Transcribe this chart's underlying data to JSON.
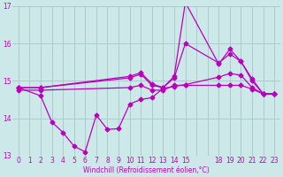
{
  "background_color": "#cce8e8",
  "grid_color": "#aacccc",
  "line_color": "#bb00bb",
  "xlim": [
    -0.5,
    23.5
  ],
  "ylim": [
    13.0,
    17.0
  ],
  "yticks": [
    13,
    14,
    15,
    16,
    17
  ],
  "xtick_labels": [
    "0",
    "1",
    "2",
    "3",
    "4",
    "5",
    "6",
    "7",
    "8",
    "9",
    "10",
    "11",
    "12",
    "13",
    "14",
    "15",
    "",
    "",
    "18",
    "19",
    "20",
    "21",
    "22",
    "23"
  ],
  "xtick_positions": [
    0,
    1,
    2,
    3,
    4,
    5,
    6,
    7,
    8,
    9,
    10,
    11,
    12,
    13,
    14,
    15,
    16,
    17,
    18,
    19,
    20,
    21,
    22,
    23
  ],
  "xlabel": "Windchill (Refroidissement éolien,°C)",
  "series_zigzag_x": [
    0,
    2,
    3,
    4,
    5,
    6,
    7,
    8,
    9,
    10,
    11,
    12,
    13,
    14,
    15,
    18,
    19,
    20,
    21,
    22,
    23
  ],
  "series_zigzag_y": [
    14.82,
    14.6,
    13.9,
    13.62,
    13.25,
    13.1,
    14.08,
    13.7,
    13.72,
    14.38,
    14.5,
    14.55,
    14.8,
    14.85,
    14.9,
    15.1,
    15.2,
    15.15,
    14.82,
    14.65,
    14.65
  ],
  "series_low_x": [
    0,
    2,
    10,
    11,
    12,
    13,
    14,
    15,
    18,
    19,
    20,
    21,
    22,
    23
  ],
  "series_low_y": [
    14.75,
    14.75,
    14.82,
    14.88,
    14.75,
    14.75,
    14.88,
    14.88,
    14.88,
    14.88,
    14.88,
    14.78,
    14.65,
    14.65
  ],
  "series_mid_x": [
    0,
    2,
    10,
    11,
    12,
    13,
    14,
    15,
    18,
    19,
    20,
    21,
    22,
    23
  ],
  "series_mid_y": [
    14.82,
    14.82,
    15.08,
    15.18,
    14.88,
    14.82,
    15.08,
    16.0,
    15.48,
    15.72,
    15.52,
    15.0,
    14.65,
    14.65
  ],
  "series_spike_x": [
    0,
    2,
    10,
    11,
    12,
    13,
    14,
    15,
    18,
    19,
    20,
    21,
    22,
    23
  ],
  "series_spike_y": [
    14.82,
    14.82,
    15.12,
    15.22,
    14.92,
    14.82,
    15.12,
    17.1,
    15.45,
    15.85,
    15.52,
    15.05,
    14.65,
    14.65
  ],
  "marker": "D",
  "markersize": 2.5,
  "linewidth": 0.9
}
